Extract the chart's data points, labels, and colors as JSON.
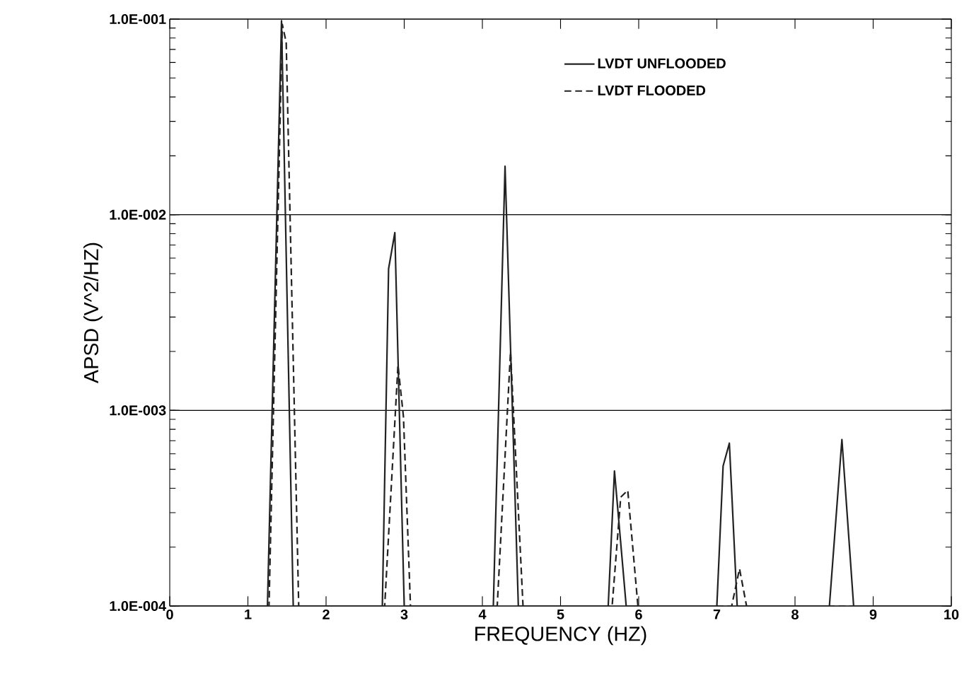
{
  "chart_data": {
    "type": "line",
    "xlabel": "FREQUENCY (HZ)",
    "ylabel": "APSD (V^2/HZ)",
    "log": "y",
    "grid": "y",
    "legend": "top right",
    "xlim": [
      0,
      10
    ],
    "xticks": [
      0,
      1,
      2,
      3,
      4,
      5,
      6,
      7,
      8,
      9,
      10
    ],
    "ylim": [
      0.0001,
      0.1
    ],
    "yticks": [
      {
        "value": 0.0001,
        "label": "1.0E-004"
      },
      {
        "value": 0.001,
        "label": "1.0E-003"
      },
      {
        "value": 0.01,
        "label": "1.0E-002"
      },
      {
        "value": 0.1,
        "label": "1.0E-001"
      }
    ],
    "series": [
      {
        "name": "LVDT UNFLOODED",
        "color": "#222222",
        "line_style": "solid",
        "x": [
          0,
          1.25,
          1.43,
          1.58,
          2.72,
          2.8,
          2.88,
          3.0,
          4.14,
          4.29,
          4.46,
          5.61,
          5.69,
          5.84,
          7.0,
          7.08,
          7.16,
          7.26,
          8.44,
          8.6,
          8.75,
          10
        ],
        "values": [
          0.0001,
          0.0001,
          0.098,
          0.0001,
          0.0001,
          0.0053,
          0.0081,
          0.0001,
          0.0001,
          0.0177,
          0.0001,
          0.0001,
          0.00049,
          0.0001,
          0.0001,
          0.00052,
          0.00068,
          0.0001,
          0.0001,
          0.00071,
          0.0001,
          0.0001
        ]
      },
      {
        "name": "LVDT FLOODED",
        "color": "#222222",
        "line_style": "dashed",
        "x": [
          0,
          1.27,
          1.44,
          1.49,
          1.65,
          2.75,
          2.92,
          2.99,
          3.08,
          4.19,
          4.36,
          4.52,
          5.66,
          5.77,
          5.86,
          5.99,
          7.19,
          7.29,
          7.38,
          10
        ],
        "values": [
          0.0001,
          0.0001,
          0.094,
          0.076,
          0.0001,
          0.0001,
          0.0017,
          0.00093,
          0.0001,
          0.0001,
          0.002,
          0.0001,
          0.0001,
          0.00036,
          0.00039,
          0.0001,
          0.0001,
          0.000155,
          0.0001,
          0.0001
        ]
      }
    ]
  }
}
